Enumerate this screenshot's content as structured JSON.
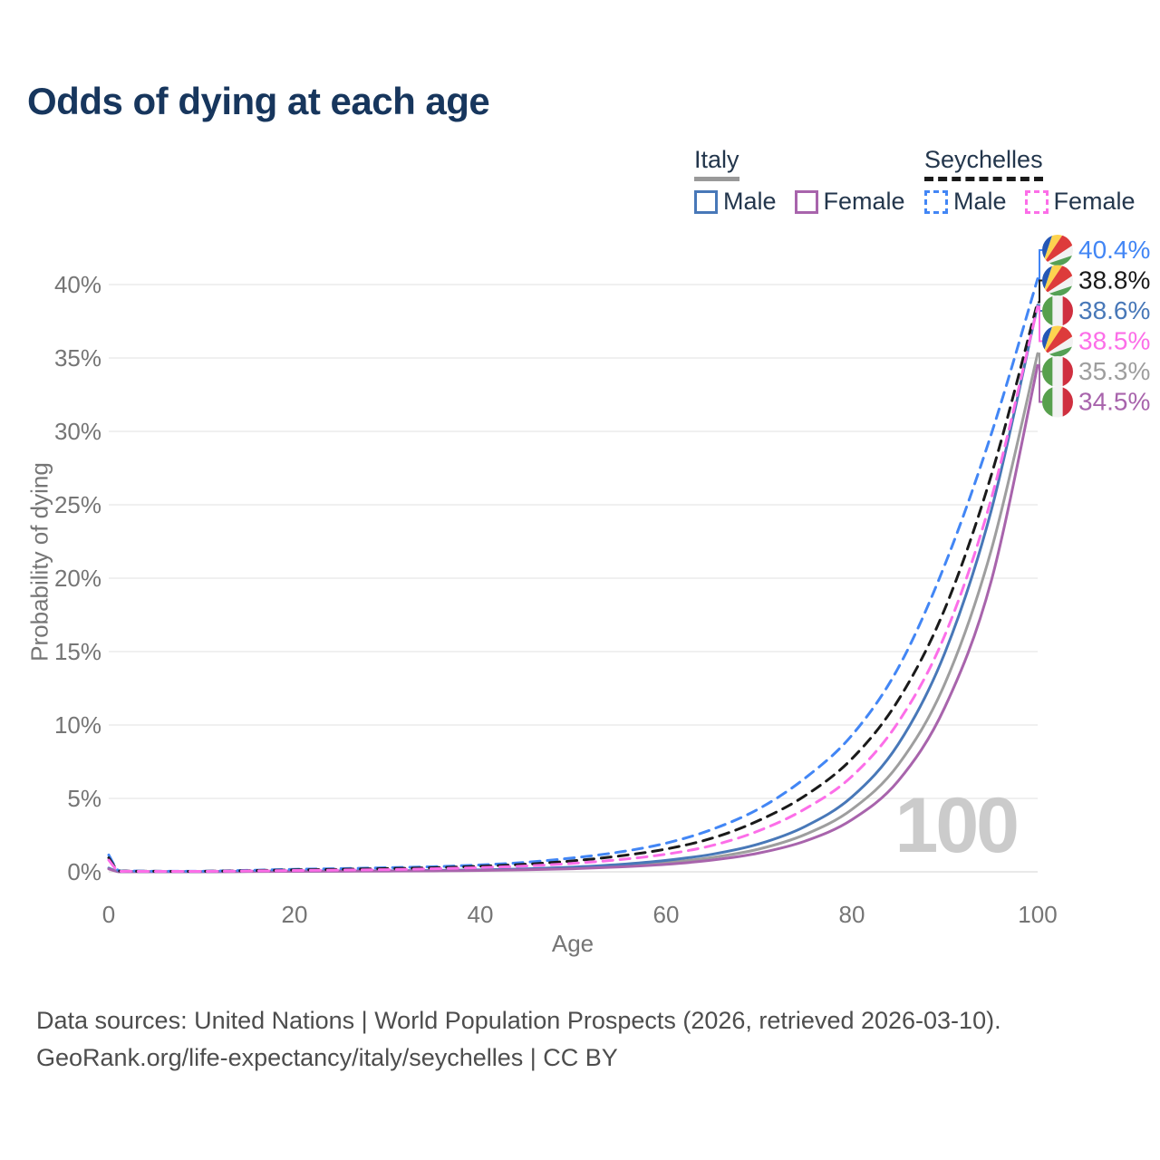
{
  "title": {
    "text": "Odds of dying at each age",
    "color": "#17365d"
  },
  "legend": {
    "position": "top-right",
    "groups": [
      {
        "name": "Italy",
        "line_style": "solid",
        "underline_color": "#999999",
        "items": [
          {
            "label": "Male",
            "color": "#4878b8"
          },
          {
            "label": "Female",
            "color": "#a864ac"
          }
        ]
      },
      {
        "name": "Seychelles",
        "line_style": "dashed",
        "underline_color": "#1a1a1a",
        "items": [
          {
            "label": "Male",
            "color": "#4286f5"
          },
          {
            "label": "Female",
            "color": "#fc6ee8"
          }
        ]
      }
    ]
  },
  "watermark": "100",
  "footer": {
    "line1": "Data sources: United Nations | World Population Prospects (2026, retrieved 2026-03-10).",
    "line2": "GeoRank.org/life-expectancy/italy/seychelles | CC BY"
  },
  "chart_data": {
    "type": "line",
    "title": "Odds of dying at each age",
    "xlabel": "Age",
    "ylabel": "Probability of dying",
    "xlim": [
      0,
      100
    ],
    "ylim": [
      0,
      43
    ],
    "x_ticks": [
      0,
      20,
      40,
      60,
      80,
      100
    ],
    "y_ticks": [
      {
        "v": 0,
        "label": "0%"
      },
      {
        "v": 5,
        "label": "5%"
      },
      {
        "v": 10,
        "label": "10%"
      },
      {
        "v": 15,
        "label": "15%"
      },
      {
        "v": 20,
        "label": "20%"
      },
      {
        "v": 25,
        "label": "25%"
      },
      {
        "v": 30,
        "label": "30%"
      },
      {
        "v": 35,
        "label": "35%"
      },
      {
        "v": 40,
        "label": "40%"
      }
    ],
    "grid": "horizontal",
    "legend_position": "top-right",
    "x": [
      0,
      1,
      2,
      5,
      10,
      15,
      20,
      25,
      30,
      35,
      40,
      45,
      50,
      55,
      60,
      65,
      70,
      75,
      80,
      85,
      90,
      95,
      100
    ],
    "series": [
      {
        "name": "Italy both sexes",
        "country": "Italy",
        "flag": "italy",
        "dash": false,
        "color": "#9e9e9e",
        "end_label": "35.3%",
        "end_value": 35.3,
        "values": [
          0.22,
          0.018,
          0.013,
          0.009,
          0.009,
          0.025,
          0.04,
          0.05,
          0.06,
          0.08,
          0.11,
          0.17,
          0.26,
          0.41,
          0.63,
          0.98,
          1.55,
          2.55,
          4.25,
          7.3,
          12.8,
          21.9,
          35.3
        ]
      },
      {
        "name": "Italy male",
        "country": "Italy",
        "flag": "italy",
        "dash": false,
        "color": "#4878b8",
        "end_label": "38.6%",
        "end_value": 38.6,
        "values": [
          0.25,
          0.02,
          0.015,
          0.01,
          0.01,
          0.03,
          0.05,
          0.06,
          0.07,
          0.09,
          0.13,
          0.2,
          0.32,
          0.5,
          0.78,
          1.2,
          1.9,
          3.1,
          5.1,
          8.7,
          14.9,
          24.6,
          38.6
        ]
      },
      {
        "name": "Italy female",
        "country": "Italy",
        "flag": "italy",
        "dash": false,
        "color": "#a864ac",
        "end_label": "34.5%",
        "end_value": 34.5,
        "values": [
          0.2,
          0.016,
          0.011,
          0.008,
          0.008,
          0.02,
          0.03,
          0.04,
          0.05,
          0.065,
          0.09,
          0.14,
          0.21,
          0.33,
          0.51,
          0.8,
          1.28,
          2.1,
          3.55,
          6.2,
          11.2,
          19.8,
          34.5
        ]
      },
      {
        "name": "Seychelles male",
        "country": "Seychelles",
        "flag": "seychelles",
        "dash": true,
        "color": "#4286f5",
        "end_label": "40.4%",
        "end_value": 40.4,
        "values": [
          1.15,
          0.1,
          0.06,
          0.04,
          0.04,
          0.1,
          0.17,
          0.22,
          0.28,
          0.35,
          0.47,
          0.65,
          0.95,
          1.35,
          1.95,
          2.9,
          4.3,
          6.4,
          9.3,
          13.9,
          20.9,
          29.8,
          40.4
        ]
      },
      {
        "name": "Seychelles both sexes",
        "country": "Seychelles",
        "flag": "seychelles",
        "dash": true,
        "color": "#1a1a1a",
        "end_label": "38.8%",
        "end_value": 38.8,
        "values": [
          0.95,
          0.09,
          0.05,
          0.035,
          0.035,
          0.08,
          0.13,
          0.17,
          0.22,
          0.28,
          0.38,
          0.52,
          0.75,
          1.08,
          1.55,
          2.3,
          3.5,
          5.2,
          7.7,
          11.7,
          17.9,
          27.0,
          38.8
        ]
      },
      {
        "name": "Seychelles female",
        "country": "Seychelles",
        "flag": "seychelles",
        "dash": true,
        "color": "#fc6ee8",
        "end_label": "38.5%",
        "end_value": 38.5,
        "values": [
          0.8,
          0.07,
          0.04,
          0.03,
          0.03,
          0.06,
          0.09,
          0.12,
          0.15,
          0.21,
          0.29,
          0.4,
          0.58,
          0.83,
          1.2,
          1.8,
          2.8,
          4.3,
          6.5,
          10.2,
          16.1,
          25.4,
          38.5
        ]
      }
    ],
    "flag_colors": {
      "italy": [
        "#57a04d",
        "#f2f2f2",
        "#cf2f3f"
      ],
      "seychelles": [
        "#2457b5",
        "#fdd34f",
        "#dd3b3b",
        "#f2f2f2",
        "#55a055"
      ]
    },
    "axis_color": "#757575",
    "grid_color": "#ececec"
  }
}
